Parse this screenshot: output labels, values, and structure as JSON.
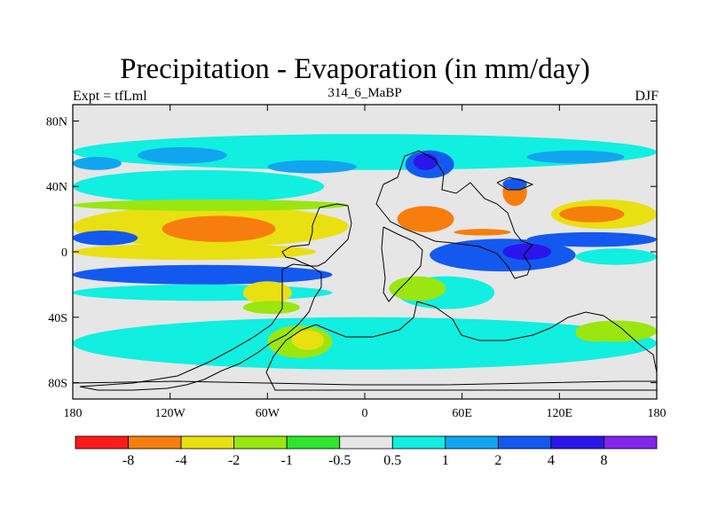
{
  "chart_data": {
    "type": "heatmap",
    "title": "Precipitation - Evaporation (in mm/day)",
    "subtitle": "314_6_MaBP",
    "left_label": "Expt = tfLml",
    "right_label": "DJF",
    "x_ticks": [
      {
        "value": -180,
        "label": "180"
      },
      {
        "value": -120,
        "label": "120W"
      },
      {
        "value": -60,
        "label": "60W"
      },
      {
        "value": 0,
        "label": "0"
      },
      {
        "value": 60,
        "label": "60E"
      },
      {
        "value": 120,
        "label": "120E"
      },
      {
        "value": 180,
        "label": "180"
      }
    ],
    "y_ticks": [
      {
        "value": 80,
        "label": "80N"
      },
      {
        "value": 40,
        "label": "40N"
      },
      {
        "value": 0,
        "label": "0"
      },
      {
        "value": -40,
        "label": "40S"
      },
      {
        "value": -80,
        "label": "80S"
      }
    ],
    "xlim": [
      -180,
      180
    ],
    "ylim": [
      -90,
      90
    ],
    "colorbar": {
      "colors": [
        "#ff1a1a",
        "#f77e0c",
        "#e9e011",
        "#9ae60f",
        "#2de62d",
        "#e6e6e6",
        "#10efe0",
        "#12a5ef",
        "#1459ef",
        "#2a16ea",
        "#8224ea"
      ],
      "labels": [
        "-8",
        "-4",
        "-2",
        "-1",
        "-0.5",
        "0.5",
        "1",
        "2",
        "4",
        "8"
      ]
    },
    "regions": [
      {
        "name": "north-band",
        "color": "#10efe0",
        "lon0": -180,
        "lon1": 180,
        "lat0": 50,
        "lat1": 72
      },
      {
        "name": "north-blue-atl",
        "color": "#12a5ef",
        "lon0": -140,
        "lon1": -85,
        "lat0": 54,
        "lat1": 64
      },
      {
        "name": "north-blue-pac",
        "color": "#12a5ef",
        "lon0": -180,
        "lon1": -150,
        "lat0": 50,
        "lat1": 58
      },
      {
        "name": "north-blue-asia",
        "color": "#12a5ef",
        "lon0": 100,
        "lon1": 160,
        "lat0": 54,
        "lat1": 62
      },
      {
        "name": "north-blue-mid",
        "color": "#12a5ef",
        "lon0": -60,
        "lon1": -5,
        "lat0": 48,
        "lat1": 56
      },
      {
        "name": "sub-cyan-n",
        "color": "#10efe0",
        "lon0": -180,
        "lon1": -25,
        "lat0": 30,
        "lat1": 50
      },
      {
        "name": "sub-yellow-n",
        "color": "#e9e011",
        "lon0": -180,
        "lon1": -10,
        "lat0": 3,
        "lat1": 28
      },
      {
        "name": "sub-green-n",
        "color": "#9ae60f",
        "lon0": -180,
        "lon1": -10,
        "lat0": 25,
        "lat1": 32
      },
      {
        "name": "orange-n-pac",
        "color": "#f77e0c",
        "lon0": -125,
        "lon1": -55,
        "lat0": 6,
        "lat1": 22
      },
      {
        "name": "blue-eq-pac",
        "color": "#1459ef",
        "lon0": -180,
        "lon1": -140,
        "lat0": 4,
        "lat1": 13
      },
      {
        "name": "yellow-eq",
        "color": "#e9e011",
        "lon0": -180,
        "lon1": -30,
        "lat0": -5,
        "lat1": 5
      },
      {
        "name": "blue-s-eq",
        "color": "#1459ef",
        "lon0": -180,
        "lon1": -20,
        "lat0": -20,
        "lat1": -8
      },
      {
        "name": "cyan-s-eq",
        "color": "#10efe0",
        "lon0": -180,
        "lon1": -20,
        "lat0": -30,
        "lat1": -20
      },
      {
        "name": "yellow-s-pac",
        "color": "#e9e011",
        "lon0": -75,
        "lon1": -45,
        "lat0": -32,
        "lat1": -18
      },
      {
        "name": "green-s-pac",
        "color": "#9ae60f",
        "lon0": -75,
        "lon1": -40,
        "lat0": -38,
        "lat1": -30
      },
      {
        "name": "cyan-s-mid",
        "color": "#10efe0",
        "lon0": -180,
        "lon1": 180,
        "lat0": -72,
        "lat1": -40
      },
      {
        "name": "green-s-atl",
        "color": "#9ae60f",
        "lon0": -60,
        "lon1": -20,
        "lat0": -65,
        "lat1": -45
      },
      {
        "name": "yellow-s-atl",
        "color": "#e9e011",
        "lon0": -45,
        "lon1": -25,
        "lat0": -60,
        "lat1": -48
      },
      {
        "name": "green-s-ind",
        "color": "#9ae60f",
        "lon0": 130,
        "lon1": 155,
        "lat0": -55,
        "lat1": -45
      },
      {
        "name": "blue-ind-eq",
        "color": "#1459ef",
        "lon0": 40,
        "lon1": 130,
        "lat0": -12,
        "lat1": 8
      },
      {
        "name": "darkblue-ind",
        "color": "#2a16ea",
        "lon0": 85,
        "lon1": 115,
        "lat0": -5,
        "lat1": 5
      },
      {
        "name": "blue-w-pac",
        "color": "#1459ef",
        "lon0": 100,
        "lon1": 180,
        "lat0": 3,
        "lat1": 12
      },
      {
        "name": "yellow-ne-pac",
        "color": "#e9e011",
        "lon0": 115,
        "lon1": 180,
        "lat0": 14,
        "lat1": 32
      },
      {
        "name": "orange-ne-pac",
        "color": "#f77e0c",
        "lon0": 120,
        "lon1": 160,
        "lat0": 18,
        "lat1": 28
      },
      {
        "name": "cyan-ne-pac",
        "color": "#10efe0",
        "lon0": 130,
        "lon1": 180,
        "lat0": -8,
        "lat1": 2
      },
      {
        "name": "orange-asia",
        "color": "#f77e0c",
        "lon0": 20,
        "lon1": 55,
        "lat0": 12,
        "lat1": 28
      },
      {
        "name": "orange-india",
        "color": "#f77e0c",
        "lon0": 55,
        "lon1": 90,
        "lat0": 10,
        "lat1": 14
      },
      {
        "name": "orange-e-asia",
        "color": "#f77e0c",
        "lon0": 85,
        "lon1": 100,
        "lat0": 28,
        "lat1": 45
      },
      {
        "name": "blue-c-asia",
        "color": "#1459ef",
        "lon0": 25,
        "lon1": 55,
        "lat0": 45,
        "lat1": 62
      },
      {
        "name": "darkblue-c-asia",
        "color": "#2a16ea",
        "lon0": 30,
        "lon1": 45,
        "lat0": 50,
        "lat1": 60
      },
      {
        "name": "blue-ne-asia",
        "color": "#1459ef",
        "lon0": 85,
        "lon1": 100,
        "lat0": 38,
        "lat1": 45
      },
      {
        "name": "cyan-s-asia",
        "color": "#10efe0",
        "lon0": 20,
        "lon1": 80,
        "lat0": -35,
        "lat1": -15
      },
      {
        "name": "green-s-asia",
        "color": "#9ae60f",
        "lon0": 15,
        "lon1": 50,
        "lat0": -30,
        "lat1": -15
      },
      {
        "name": "green-aus",
        "color": "#9ae60f",
        "lon0": 130,
        "lon1": 180,
        "lat0": -55,
        "lat1": -42
      }
    ]
  }
}
